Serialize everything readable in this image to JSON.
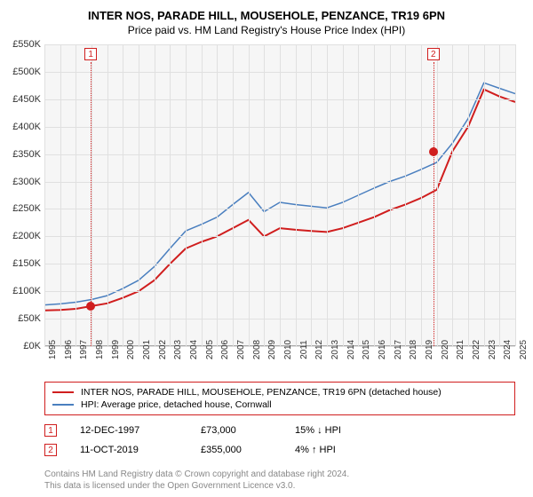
{
  "title": "INTER NOS, PARADE HILL, MOUSEHOLE, PENZANCE, TR19 6PN",
  "subtitle": "Price paid vs. HM Land Registry's House Price Index (HPI)",
  "chart": {
    "type": "line",
    "background_color": "#f6f6f6",
    "grid_color": "#e0e0e0",
    "plot_border_color": "#aaaaaa",
    "ylim": [
      0,
      550
    ],
    "ytick_step": 50,
    "y_prefix": "£",
    "y_suffix": "K",
    "x_years": [
      1995,
      1996,
      1997,
      1998,
      1999,
      2000,
      2001,
      2002,
      2003,
      2004,
      2005,
      2006,
      2007,
      2008,
      2009,
      2010,
      2011,
      2012,
      2013,
      2014,
      2015,
      2016,
      2017,
      2018,
      2019,
      2020,
      2021,
      2022,
      2023,
      2024,
      2025
    ],
    "series": [
      {
        "name": "INTER NOS, PARADE HILL, MOUSEHOLE, PENZANCE, TR19 6PN (detached house)",
        "color": "#d01e1e",
        "width": 2,
        "values": [
          65,
          66,
          68,
          73,
          78,
          88,
          100,
          120,
          150,
          178,
          190,
          200,
          215,
          230,
          200,
          215,
          212,
          210,
          208,
          215,
          225,
          235,
          248,
          258,
          270,
          285,
          355,
          400,
          468,
          455,
          445
        ]
      },
      {
        "name": "HPI: Average price, detached house, Cornwall",
        "color": "#4a7fbf",
        "width": 1.5,
        "values": [
          75,
          77,
          80,
          85,
          92,
          105,
          120,
          145,
          178,
          210,
          222,
          235,
          258,
          280,
          245,
          262,
          258,
          255,
          252,
          262,
          275,
          288,
          300,
          310,
          322,
          335,
          370,
          415,
          480,
          470,
          460
        ]
      }
    ],
    "sale_markers": [
      {
        "index": 1,
        "year": 1997.95,
        "value": 73,
        "color": "#d01e1e"
      },
      {
        "index": 2,
        "year": 2019.78,
        "value": 355,
        "color": "#d01e1e"
      }
    ],
    "marker_box_border": "#d01e1e",
    "marker_box_text_color": "#d01e1e",
    "marker_line_style": "dotted",
    "xtick_rotation": -90,
    "axis_label_fontsize": 11
  },
  "legend": {
    "border_color": "#d01e1e",
    "rows": [
      {
        "color": "#d01e1e",
        "label": "INTER NOS, PARADE HILL, MOUSEHOLE, PENZANCE, TR19 6PN (detached house)"
      },
      {
        "color": "#4a7fbf",
        "label": "HPI: Average price, detached house, Cornwall"
      }
    ]
  },
  "sale_rows": [
    {
      "index": 1,
      "date": "12-DEC-1997",
      "price": "£73,000",
      "delta": "15% ↓ HPI"
    },
    {
      "index": 2,
      "date": "11-OCT-2019",
      "price": "£355,000",
      "delta": "4% ↑ HPI"
    }
  ],
  "footer": {
    "line1": "Contains HM Land Registry data © Crown copyright and database right 2024.",
    "line2": "This data is licensed under the Open Government Licence v3.0."
  },
  "text_color": "#333333",
  "muted_text_color": "#888888"
}
